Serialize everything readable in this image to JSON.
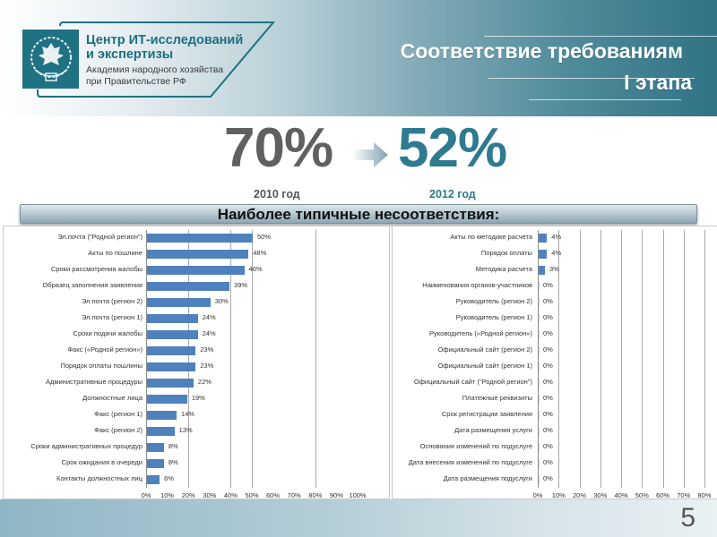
{
  "header": {
    "org_name_line1": "Центр ИТ-исследований",
    "org_name_line2": "и экспертизы",
    "org_sub_line1": "Академия народного хозяйства",
    "org_sub_line2": "при Правительстве РФ",
    "title_line1": "Соответствие требованиям",
    "title_line2": "I этапа"
  },
  "summary": {
    "value_2010": "70%",
    "value_2012": "52%",
    "label_2010": "2010 год",
    "label_2012": "2012 год",
    "color_2010": "#606060",
    "color_2012": "#2e7a8e"
  },
  "banner": {
    "text": "Наиболее типичные несоответствия:"
  },
  "chart_data": [
    {
      "type": "bar",
      "orientation": "horizontal",
      "title": "2010 год — несоответствия",
      "categories": [
        "Эл.почта (\"Родной регион\")",
        "Акты по пошлине",
        "Сроки рассмотрения жалобы",
        "Образец заполнения заявления",
        "Эл.почта (регион 2)",
        "Эл.почта (регион 1)",
        "Сроки подачи жалобы",
        "Факс («Родной регион»)",
        "Порядок оплаты пошлины",
        "Административные процедуры",
        "Должностные лица",
        "Факс (регион 1)",
        "Факс (регион 2)",
        "Сроки административных процедур",
        "Срок ожидания в очереди",
        "Контакты должностных лиц"
      ],
      "values": [
        50,
        48,
        46,
        39,
        30,
        24,
        24,
        23,
        23,
        22,
        19,
        14,
        13,
        8,
        8,
        6
      ],
      "value_labels": [
        "50%",
        "48%",
        "46%",
        "39%",
        "30%",
        "24%",
        "24%",
        "23%",
        "23%",
        "22%",
        "19%",
        "14%",
        "13%",
        "8%",
        "8%",
        "6%"
      ],
      "xlim": [
        0,
        100
      ],
      "xticks": [
        "0%",
        "10%",
        "20%",
        "30%",
        "40%",
        "50%",
        "60%",
        "70%",
        "80%",
        "90%",
        "100%"
      ],
      "gridlines_at": [
        20,
        40,
        50,
        80
      ],
      "grid": true,
      "bar_color": "#4f81bd",
      "xlabel": "",
      "ylabel": ""
    },
    {
      "type": "bar",
      "orientation": "horizontal",
      "title": "2012 год — несоответствия",
      "categories": [
        "Акты по методике расчета",
        "Порядок оплаты",
        "Методика расчета",
        "Наименования органов-участников",
        "Руководитель (регион 2)",
        "Руководитель (регион 1)",
        "Руководитель («Родной регион»)",
        "Официальный сайт (регион 2)",
        "Официальный сайт (регион 1)",
        "Официальный сайт (\"Родной регион\")",
        "Платежные реквизиты",
        "Срок регистрации заявления",
        "Дата размещения услуги",
        "Основания изменений по подуслуге",
        "Дата внесения изменений по подуслуге",
        "Дата размещения подуслуги"
      ],
      "values": [
        4,
        4,
        3,
        0,
        0,
        0,
        0,
        0,
        0,
        0,
        0,
        0,
        0,
        0,
        0,
        0
      ],
      "value_labels": [
        "4%",
        "4%",
        "3%",
        "0%",
        "0%",
        "0%",
        "0%",
        "0%",
        "0%",
        "0%",
        "0%",
        "0%",
        "0%",
        "0%",
        "0%",
        "0%"
      ],
      "xlim": [
        0,
        80
      ],
      "xticks": [
        "0%",
        "10%",
        "20%",
        "30%",
        "40%",
        "50%",
        "60%",
        "70%",
        "80%"
      ],
      "grid": true,
      "bar_color": "#4f81bd",
      "xlabel": "",
      "ylabel": ""
    }
  ],
  "footer": {
    "page_number": "5"
  }
}
